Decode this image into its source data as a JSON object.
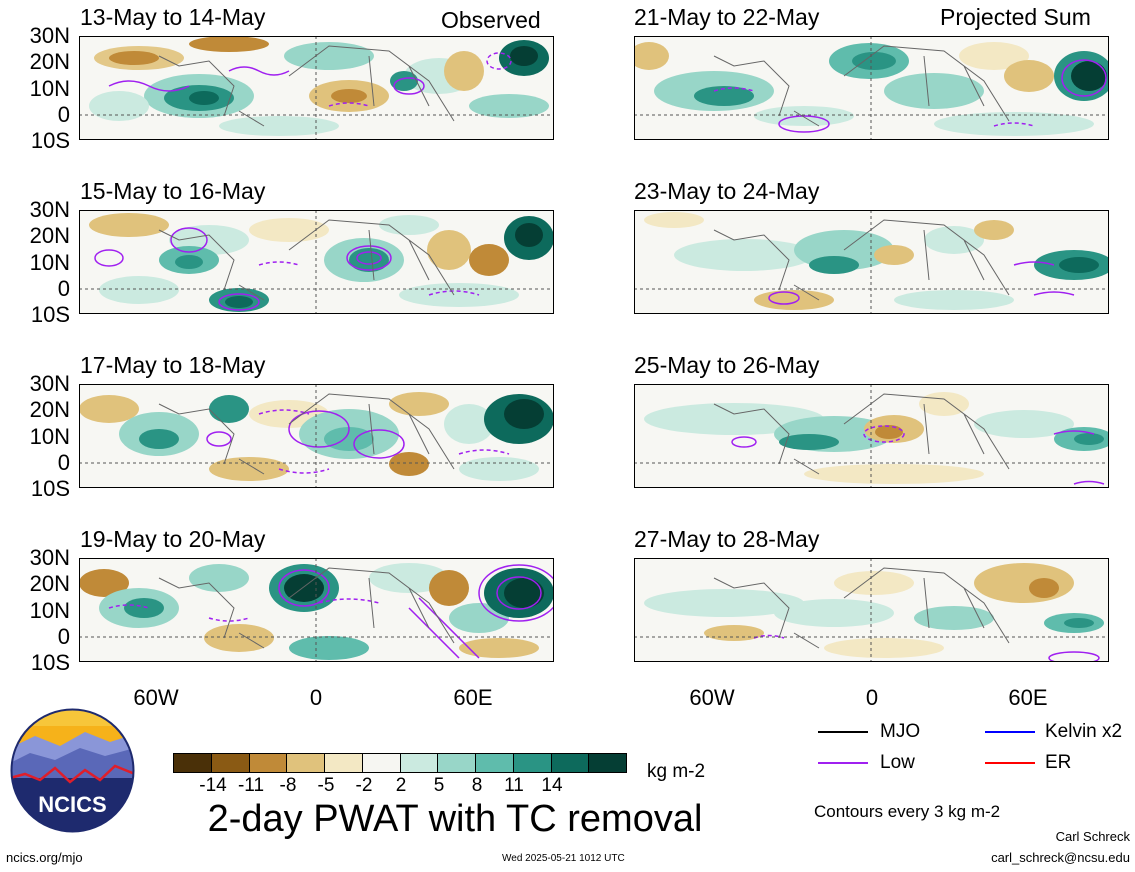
{
  "columns": {
    "observed_label": "Observed",
    "projected_label": "Projected Sum"
  },
  "panels_observed": [
    {
      "title": "13-May to 14-May"
    },
    {
      "title": "15-May to 16-May"
    },
    {
      "title": "17-May to 18-May"
    },
    {
      "title": "19-May to 20-May"
    }
  ],
  "panels_projected": [
    {
      "title": "21-May to 22-May"
    },
    {
      "title": "23-May to 24-May"
    },
    {
      "title": "25-May to 26-May"
    },
    {
      "title": "27-May to 28-May"
    }
  ],
  "lat_labels": [
    "30N",
    "20N",
    "10N",
    "0",
    "10S"
  ],
  "lon_labels": [
    "60W",
    "0",
    "60E"
  ],
  "colorbar": {
    "colors": [
      "#4a3008",
      "#8a5a14",
      "#c08a38",
      "#e0c27c",
      "#f3e8c4",
      "#f6f6f2",
      "#cbeae0",
      "#98d6c8",
      "#5fbcac",
      "#2a9484",
      "#0d6a5c",
      "#053e34"
    ],
    "labels": [
      "-14",
      "-11",
      "-8",
      "-5",
      "-2",
      "2",
      "5",
      "8",
      "11",
      "14"
    ],
    "units": "kg m-2"
  },
  "legend": {
    "mjo": {
      "label": "MJO",
      "color": "#000000"
    },
    "kelvin": {
      "label": "Kelvin x2",
      "color": "#0000ff"
    },
    "low": {
      "label": "Low",
      "color": "#a020f0"
    },
    "er": {
      "label": "ER",
      "color": "#ff0000"
    },
    "contours_note": "Contours every 3 kg m-2"
  },
  "main_title": "2-day PWAT with TC removal",
  "logo_text": "NCICS",
  "footer": {
    "url": "ncics.org/mjo",
    "timestamp": "Wed 2025-05-21 1012 UTC",
    "author": "Carl Schreck",
    "email": "carl_schreck@ncsu.edu"
  }
}
